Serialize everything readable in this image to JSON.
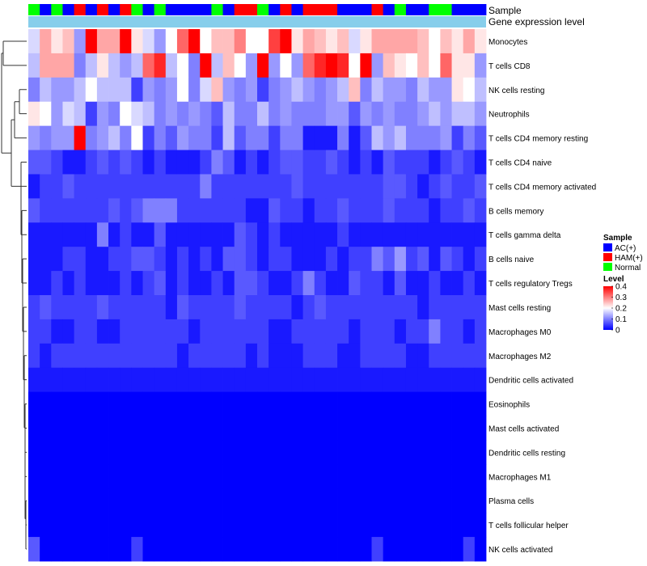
{
  "chart_data": {
    "type": "heatmap",
    "title": "",
    "annotation_rows": [
      "Sample",
      "Gene expression level"
    ],
    "rows": [
      "Monocytes",
      "T cells CD8",
      "NK cells resting",
      "Neutrophils",
      "T cells CD4 memory resting",
      "T cells CD4 naive",
      "T cells CD4 memory activated",
      "B cells memory",
      "T cells gamma delta",
      "B cells naive",
      "T cells regulatory  Tregs",
      "Mast cells resting",
      "Macrophages M0",
      "Macrophages M2",
      "Dendritic cells activated",
      "Eosinophils",
      "Mast cells activated",
      "Dendritic cells resting",
      "Macrophages M1",
      "Plasma cells",
      "T cells follicular helper",
      "NK cells activated"
    ],
    "sample_groups": [
      "N",
      "A",
      "N",
      "A",
      "H",
      "A",
      "H",
      "A",
      "H",
      "N",
      "A",
      "N",
      "A",
      "A",
      "A",
      "A",
      "N",
      "A",
      "H",
      "H",
      "N",
      "A",
      "H",
      "A",
      "H",
      "H",
      "H",
      "A",
      "A",
      "A",
      "H",
      "A",
      "N",
      "A",
      "A",
      "N",
      "N",
      "A",
      "A",
      "A"
    ],
    "values": [
      [
        0.17,
        0.27,
        0.22,
        0.25,
        0.12,
        0.4,
        0.27,
        0.27,
        0.4,
        0.22,
        0.17,
        0.12,
        0.2,
        0.32,
        0.4,
        0.2,
        0.25,
        0.25,
        0.3,
        0.2,
        0.2,
        0.35,
        0.4,
        0.22,
        0.27,
        0.25,
        0.22,
        0.25,
        0.17,
        0.22,
        0.27,
        0.27,
        0.27,
        0.27,
        0.25,
        0.2,
        0.25,
        0.22,
        0.27,
        0.22
      ],
      [
        0.15,
        0.27,
        0.27,
        0.27,
        0.1,
        0.15,
        0.22,
        0.15,
        0.12,
        0.15,
        0.32,
        0.37,
        0.15,
        0.2,
        0.1,
        0.4,
        0.15,
        0.25,
        0.2,
        0.12,
        0.4,
        0.12,
        0.2,
        0.12,
        0.32,
        0.37,
        0.4,
        0.37,
        0.2,
        0.4,
        0.12,
        0.25,
        0.22,
        0.2,
        0.25,
        0.2,
        0.32,
        0.22,
        0.22,
        0.12
      ],
      [
        0.1,
        0.15,
        0.12,
        0.12,
        0.15,
        0.2,
        0.15,
        0.15,
        0.15,
        0.05,
        0.12,
        0.1,
        0.12,
        0.2,
        0.1,
        0.17,
        0.25,
        0.12,
        0.1,
        0.12,
        0.05,
        0.1,
        0.12,
        0.15,
        0.12,
        0.1,
        0.12,
        0.15,
        0.25,
        0.1,
        0.15,
        0.12,
        0.12,
        0.1,
        0.15,
        0.12,
        0.12,
        0.22,
        0.2,
        0.15
      ],
      [
        0.22,
        0.2,
        0.12,
        0.17,
        0.15,
        0.05,
        0.12,
        0.1,
        0.2,
        0.17,
        0.15,
        0.1,
        0.12,
        0.1,
        0.12,
        0.1,
        0.07,
        0.15,
        0.1,
        0.1,
        0.15,
        0.1,
        0.12,
        0.1,
        0.1,
        0.1,
        0.12,
        0.12,
        0.07,
        0.12,
        0.1,
        0.12,
        0.1,
        0.1,
        0.12,
        0.15,
        0.12,
        0.15,
        0.15,
        0.12
      ],
      [
        0.12,
        0.1,
        0.12,
        0.12,
        0.4,
        0.1,
        0.12,
        0.15,
        0.1,
        0.2,
        0.05,
        0.1,
        0.07,
        0.12,
        0.1,
        0.1,
        0.05,
        0.15,
        0.07,
        0.1,
        0.1,
        0.05,
        0.1,
        0.1,
        0.02,
        0.02,
        0.02,
        0.1,
        0.02,
        0.07,
        0.15,
        0.12,
        0.15,
        0.1,
        0.1,
        0.1,
        0.12,
        0.05,
        0.1,
        0.07
      ],
      [
        0.07,
        0.07,
        0.05,
        0.02,
        0.02,
        0.05,
        0.07,
        0.05,
        0.07,
        0.05,
        0.02,
        0.05,
        0.02,
        0.02,
        0.02,
        0.05,
        0.1,
        0.07,
        0.02,
        0.05,
        0.02,
        0.05,
        0.07,
        0.07,
        0.05,
        0.05,
        0.07,
        0.05,
        0.02,
        0.05,
        0.02,
        0.07,
        0.05,
        0.05,
        0.05,
        0.02,
        0.05,
        0.07,
        0.05,
        0.02
      ],
      [
        0.02,
        0.05,
        0.05,
        0.07,
        0.05,
        0.05,
        0.05,
        0.05,
        0.05,
        0.05,
        0.05,
        0.05,
        0.05,
        0.05,
        0.05,
        0.1,
        0.05,
        0.05,
        0.05,
        0.05,
        0.05,
        0.05,
        0.05,
        0.07,
        0.05,
        0.05,
        0.05,
        0.05,
        0.05,
        0.05,
        0.05,
        0.07,
        0.07,
        0.05,
        0.02,
        0.05,
        0.07,
        0.05,
        0.05,
        0.07
      ],
      [
        0.07,
        0.05,
        0.05,
        0.05,
        0.05,
        0.05,
        0.05,
        0.07,
        0.05,
        0.07,
        0.1,
        0.1,
        0.1,
        0.05,
        0.05,
        0.05,
        0.05,
        0.05,
        0.05,
        0.02,
        0.02,
        0.07,
        0.05,
        0.05,
        0.02,
        0.05,
        0.05,
        0.07,
        0.05,
        0.05,
        0.05,
        0.07,
        0.05,
        0.05,
        0.05,
        0.02,
        0.05,
        0.05,
        0.07,
        0.05
      ],
      [
        0.02,
        0.02,
        0.02,
        0.02,
        0.02,
        0.02,
        0.1,
        0.02,
        0.05,
        0.02,
        0.02,
        0.07,
        0.02,
        0.02,
        0.02,
        0.02,
        0.02,
        0.02,
        0.07,
        0.05,
        0.02,
        0.05,
        0.02,
        0.02,
        0.02,
        0.02,
        0.02,
        0.05,
        0.02,
        0.02,
        0.02,
        0.02,
        0.02,
        0.02,
        0.02,
        0.02,
        0.02,
        0.02,
        0.02,
        0.02
      ],
      [
        0.02,
        0.02,
        0.02,
        0.05,
        0.05,
        0.02,
        0.02,
        0.05,
        0.05,
        0.07,
        0.07,
        0.05,
        0.02,
        0.05,
        0.02,
        0.05,
        0.02,
        0.07,
        0.07,
        0.05,
        0.02,
        0.05,
        0.05,
        0.02,
        0.02,
        0.02,
        0.05,
        0.02,
        0.05,
        0.05,
        0.1,
        0.07,
        0.12,
        0.05,
        0.07,
        0.02,
        0.07,
        0.05,
        0.02,
        0.05
      ],
      [
        0.02,
        0.02,
        0.05,
        0.02,
        0.05,
        0.02,
        0.02,
        0.02,
        0.05,
        0.02,
        0.05,
        0.07,
        0.02,
        0.05,
        0.02,
        0.02,
        0.05,
        0.02,
        0.07,
        0.07,
        0.05,
        0.02,
        0.02,
        0.05,
        0.1,
        0.05,
        0.02,
        0.02,
        0.07,
        0.05,
        0.05,
        0.02,
        0.07,
        0.02,
        0.02,
        0.05,
        0.02,
        0.02,
        0.05,
        0.02
      ],
      [
        0.05,
        0.07,
        0.05,
        0.05,
        0.05,
        0.05,
        0.07,
        0.05,
        0.05,
        0.05,
        0.05,
        0.05,
        0.02,
        0.07,
        0.05,
        0.05,
        0.05,
        0.05,
        0.07,
        0.05,
        0.05,
        0.05,
        0.05,
        0.02,
        0.05,
        0.07,
        0.05,
        0.05,
        0.05,
        0.05,
        0.05,
        0.05,
        0.05,
        0.05,
        0.02,
        0.05,
        0.05,
        0.05,
        0.05,
        0.05
      ],
      [
        0.05,
        0.05,
        0.02,
        0.02,
        0.05,
        0.05,
        0.02,
        0.02,
        0.05,
        0.05,
        0.05,
        0.05,
        0.05,
        0.05,
        0.02,
        0.05,
        0.05,
        0.05,
        0.05,
        0.05,
        0.05,
        0.02,
        0.02,
        0.05,
        0.05,
        0.05,
        0.05,
        0.05,
        0.02,
        0.05,
        0.05,
        0.05,
        0.02,
        0.05,
        0.05,
        0.1,
        0.05,
        0.05,
        0.02,
        0.05
      ],
      [
        0.05,
        0.02,
        0.05,
        0.05,
        0.05,
        0.05,
        0.05,
        0.05,
        0.05,
        0.05,
        0.05,
        0.05,
        0.05,
        0.02,
        0.05,
        0.05,
        0.05,
        0.05,
        0.05,
        0.02,
        0.05,
        0.02,
        0.02,
        0.02,
        0.05,
        0.05,
        0.05,
        0.02,
        0.02,
        0.05,
        0.05,
        0.05,
        0.05,
        0.02,
        0.02,
        0.05,
        0.05,
        0.05,
        0.05,
        0.05
      ],
      [
        0.02,
        0.02,
        0.02,
        0.02,
        0.02,
        0.02,
        0.02,
        0.02,
        0.02,
        0.02,
        0.02,
        0.02,
        0.02,
        0.02,
        0.02,
        0.02,
        0.02,
        0.02,
        0.02,
        0.02,
        0.02,
        0.02,
        0.02,
        0.02,
        0.02,
        0.02,
        0.02,
        0.02,
        0.02,
        0.02,
        0.02,
        0.02,
        0.02,
        0.02,
        0.02,
        0.02,
        0.02,
        0.02,
        0.02,
        0.02
      ],
      [
        0,
        0,
        0,
        0,
        0,
        0,
        0,
        0,
        0,
        0,
        0,
        0,
        0,
        0,
        0,
        0,
        0,
        0,
        0,
        0,
        0,
        0,
        0,
        0,
        0,
        0,
        0,
        0,
        0,
        0,
        0,
        0,
        0,
        0,
        0,
        0,
        0,
        0,
        0,
        0
      ],
      [
        0,
        0,
        0,
        0,
        0,
        0,
        0,
        0,
        0,
        0,
        0,
        0,
        0,
        0,
        0,
        0,
        0,
        0,
        0,
        0,
        0,
        0,
        0,
        0,
        0,
        0,
        0,
        0,
        0,
        0,
        0,
        0,
        0,
        0,
        0,
        0,
        0,
        0,
        0,
        0
      ],
      [
        0,
        0,
        0,
        0,
        0,
        0,
        0,
        0,
        0,
        0,
        0,
        0,
        0,
        0,
        0,
        0,
        0,
        0,
        0,
        0,
        0,
        0,
        0,
        0,
        0,
        0,
        0,
        0,
        0,
        0,
        0,
        0,
        0,
        0,
        0,
        0,
        0,
        0,
        0,
        0
      ],
      [
        0,
        0,
        0,
        0,
        0,
        0,
        0,
        0,
        0,
        0,
        0,
        0,
        0,
        0,
        0,
        0,
        0,
        0,
        0,
        0,
        0,
        0,
        0,
        0,
        0,
        0,
        0,
        0,
        0,
        0,
        0,
        0,
        0,
        0,
        0,
        0,
        0,
        0,
        0,
        0
      ],
      [
        0,
        0,
        0,
        0,
        0,
        0,
        0,
        0,
        0,
        0,
        0,
        0,
        0,
        0,
        0,
        0,
        0,
        0,
        0,
        0,
        0,
        0,
        0,
        0,
        0,
        0,
        0,
        0,
        0,
        0,
        0,
        0,
        0,
        0,
        0,
        0,
        0,
        0,
        0,
        0
      ],
      [
        0,
        0,
        0,
        0,
        0,
        0,
        0,
        0,
        0,
        0,
        0,
        0,
        0,
        0,
        0,
        0,
        0,
        0,
        0,
        0,
        0,
        0,
        0,
        0,
        0,
        0,
        0,
        0,
        0,
        0,
        0,
        0,
        0,
        0,
        0,
        0,
        0,
        0,
        0,
        0
      ],
      [
        0.07,
        0,
        0,
        0,
        0,
        0,
        0,
        0,
        0,
        0.05,
        0,
        0,
        0,
        0,
        0,
        0,
        0,
        0,
        0,
        0,
        0,
        0,
        0,
        0,
        0,
        0,
        0,
        0,
        0,
        0,
        0.05,
        0,
        0,
        0,
        0,
        0,
        0,
        0,
        0.05,
        0
      ]
    ],
    "color_scale": {
      "min": 0,
      "mid": 0.2,
      "max": 0.4,
      "colors": [
        "#0000ff",
        "#ffffff",
        "#ff0000"
      ]
    },
    "annotation_colors": {
      "A": "#0000ff",
      "H": "#ff0000",
      "N": "#00ff00",
      "expression": "#87ceeb"
    },
    "legend": {
      "sample_title": "Sample",
      "groups": [
        {
          "key": "A",
          "label": "AC(+)"
        },
        {
          "key": "H",
          "label": "HAM(+)"
        },
        {
          "key": "N",
          "label": "Normal"
        }
      ],
      "level_title": "Level",
      "level_ticks": [
        "0.4",
        "0.3",
        "0.2",
        "0.1",
        "0"
      ],
      "level_tick_values": [
        0.4,
        0.3,
        0.2,
        0.1,
        0
      ],
      "position": "right"
    }
  }
}
